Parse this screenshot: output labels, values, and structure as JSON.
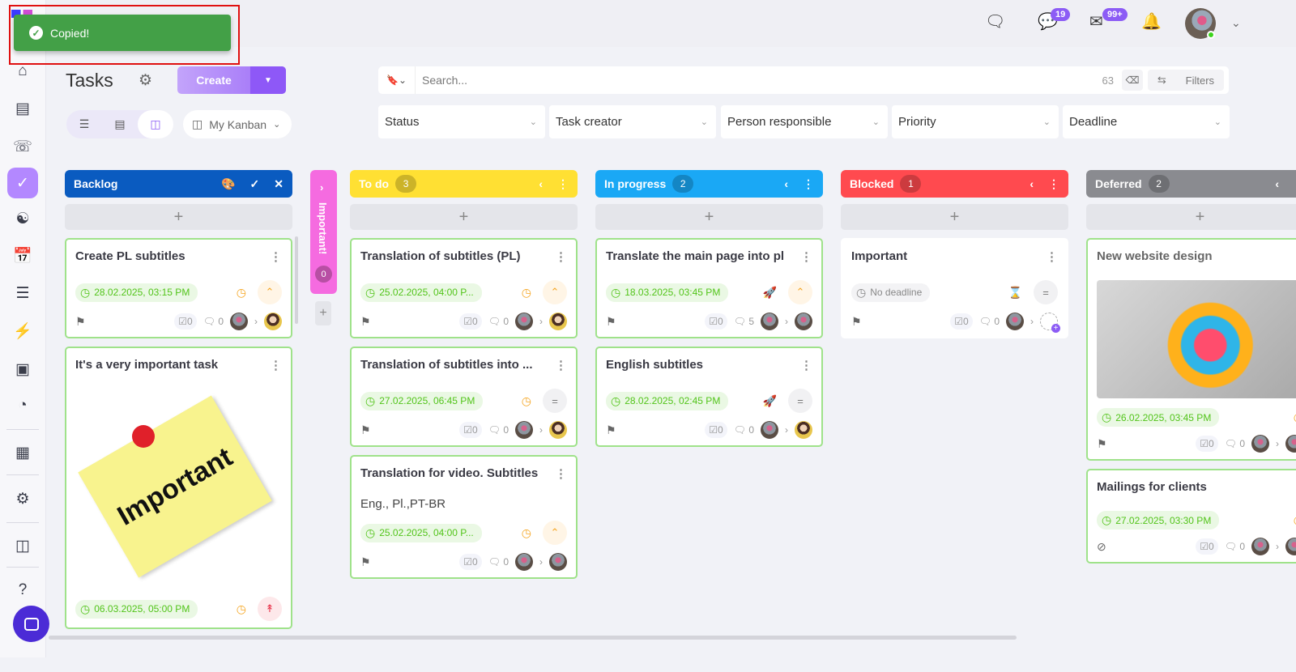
{
  "toast": {
    "text": "Copied!"
  },
  "header": {
    "title": "Tasks",
    "create_label": "Create",
    "view_name": "My Kanban",
    "search_placeholder": "Search...",
    "result_count": "63",
    "filters_label": "Filters",
    "chat_badge": "19",
    "mail_badge": "99+"
  },
  "filters": [
    "Status",
    "Task creator",
    "Person responsible",
    "Priority",
    "Deadline"
  ],
  "columns": [
    {
      "name": "Backlog",
      "color": "#0a5bc0",
      "count": null,
      "editing": true,
      "cards": [
        {
          "title": "Create PL subtitles",
          "date": "28.02.2025, 03:15 PM",
          "status": "clock",
          "priority": "up",
          "checklist": "0",
          "comments": "0",
          "to": "f"
        },
        {
          "title": "It's a very important task",
          "image": "sticky",
          "image_text": "Important",
          "date": "06.03.2025, 05:00 PM",
          "status": "clock",
          "priority": "double-up",
          "checklist": "0",
          "comments": "0",
          "to": "f",
          "nofooter": true
        }
      ]
    },
    {
      "name": "To do",
      "color": "#ffe033",
      "count": "3",
      "cards": [
        {
          "title": "Translation of subtitles (PL)",
          "date": "25.02.2025, 04:00 P...",
          "status": "clock",
          "priority": "up",
          "checklist": "0",
          "comments": "0",
          "to": "f"
        },
        {
          "title": "Translation of subtitles into ...",
          "date": "27.02.2025, 06:45 PM",
          "status": "clock",
          "priority": "equal",
          "checklist": "0",
          "comments": "0",
          "to": "f"
        },
        {
          "title": "Translation for video. Subtitles",
          "desc": "Eng., Pl.,PT-BR",
          "date": "25.02.2025, 04:00 P...",
          "status": "clock",
          "priority": "up",
          "checklist": "0",
          "comments": "0",
          "to": "m"
        }
      ]
    },
    {
      "name": "In progress",
      "color": "#1aa8f5",
      "count": "2",
      "cards": [
        {
          "title": "Translate the main page into pl",
          "date": "18.03.2025, 03:45 PM",
          "status": "rocket",
          "priority": "up",
          "checklist": "0",
          "comments": "5",
          "to": "m"
        },
        {
          "title": "English subtitles",
          "date": "28.02.2025, 02:45 PM",
          "status": "rocket",
          "priority": "equal",
          "checklist": "0",
          "comments": "0",
          "to": "f"
        }
      ]
    },
    {
      "name": "Blocked",
      "color": "#ff4a4f",
      "count": "1",
      "cards": [
        {
          "title": "Important",
          "date": "No deadline",
          "nodeadline": true,
          "status": "hourglass",
          "priority": "equal",
          "checklist": "0",
          "comments": "0",
          "to": "add",
          "noborder": true
        }
      ]
    },
    {
      "name": "Deferred",
      "color": "#8a8b90",
      "count": "2",
      "cards": [
        {
          "title": "New website design",
          "muted": true,
          "image": "art",
          "date": "26.02.2025, 03:45 PM",
          "status": "clock",
          "checklist": "0",
          "comments": "0",
          "to": "m"
        },
        {
          "title": "Mailings for clients",
          "date": "27.02.2025, 03:30 PM",
          "status": "clock",
          "checklist": "0",
          "comments": "0",
          "to": "m",
          "hidden": true
        }
      ]
    }
  ],
  "collapsed_column": {
    "name": "Important!",
    "color": "#f56be0",
    "count": "0"
  }
}
